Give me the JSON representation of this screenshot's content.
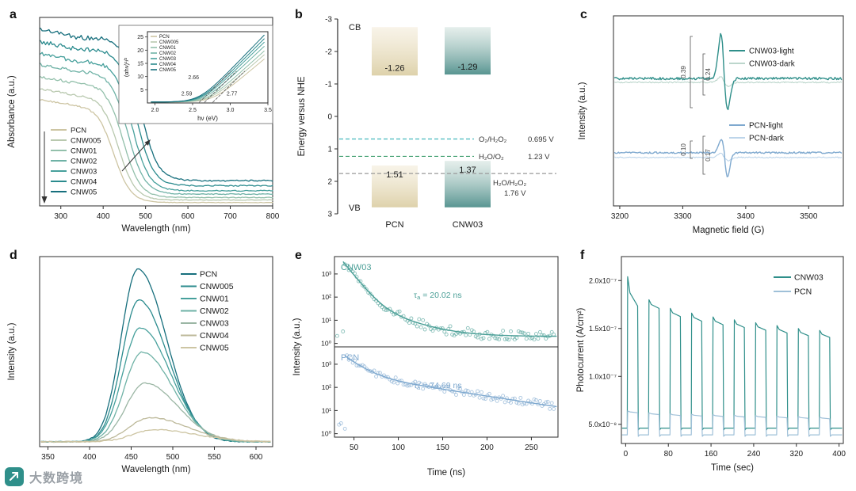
{
  "watermark": {
    "icon_name": "dashu-logo-icon",
    "icon_bg": "#2f8f8a",
    "text": "大数跨境",
    "text_color": "#9aa0a6"
  },
  "chart_data": [
    {
      "panel": "a",
      "label": "a",
      "type": "line",
      "xlabel": "Wavelength (nm)",
      "ylabel": "Absorbance (a.u.)",
      "x_range": [
        250,
        800
      ],
      "x_ticks": [
        300,
        400,
        500,
        600,
        700,
        800
      ],
      "series": [
        {
          "name": "PCN",
          "color": "#cdc5a3",
          "plateau": 0.6,
          "edge_nm": 425,
          "tail": 0.02
        },
        {
          "name": "CNW005",
          "color": "#b9c9af",
          "plateau": 0.66,
          "edge_nm": 436,
          "tail": 0.035
        },
        {
          "name": "CNW01",
          "color": "#93c0ab",
          "plateau": 0.73,
          "edge_nm": 447,
          "tail": 0.05
        },
        {
          "name": "CNW02",
          "color": "#6fb2a6",
          "plateau": 0.8,
          "edge_nm": 458,
          "tail": 0.07
        },
        {
          "name": "CNW03",
          "color": "#47a09c",
          "plateau": 0.86,
          "edge_nm": 468,
          "tail": 0.09
        },
        {
          "name": "CNW04",
          "color": "#2b8b8e",
          "plateau": 0.93,
          "edge_nm": 478,
          "tail": 0.12
        },
        {
          "name": "CNW05",
          "color": "#176f7d",
          "plateau": 1.0,
          "edge_nm": 488,
          "tail": 0.15
        }
      ],
      "inset": {
        "xlabel": "hν (eV)",
        "ylabel": "(αhν)¹/²",
        "x_range": [
          1.9,
          3.5
        ],
        "y_range": [
          0,
          27
        ],
        "x_ticks": [
          2.0,
          2.5,
          3.0,
          3.5
        ],
        "y_ticks": [
          5,
          10,
          15,
          20,
          25
        ],
        "series": [
          {
            "name": "PCN",
            "color": "#cdc5a3",
            "onset": 2.77,
            "slope": 26
          },
          {
            "name": "CNW005",
            "color": "#b9c9af",
            "onset": 2.73,
            "slope": 27
          },
          {
            "name": "CNW01",
            "color": "#93c0ab",
            "onset": 2.7,
            "slope": 28
          },
          {
            "name": "CNW02",
            "color": "#6fb2a6",
            "onset": 2.66,
            "slope": 29
          },
          {
            "name": "CNW03",
            "color": "#47a09c",
            "onset": 2.63,
            "slope": 30
          },
          {
            "name": "CNW04",
            "color": "#2b8b8e",
            "onset": 2.61,
            "slope": 31
          },
          {
            "name": "CNW05",
            "color": "#176f7d",
            "onset": 2.59,
            "slope": 32
          }
        ],
        "bandgaps": [
          {
            "text": "2.59",
            "value": 2.59
          },
          {
            "text": "2.66",
            "value": 2.66
          },
          {
            "text": "2.77",
            "value": 2.77
          }
        ]
      }
    },
    {
      "panel": "b",
      "label": "b",
      "type": "band-diagram",
      "ylabel": "Energy versus NHE",
      "y_range": [
        -3,
        3
      ],
      "y_ticks": [
        -3,
        -2,
        -1,
        0,
        1,
        2,
        3
      ],
      "cb_label": "CB",
      "vb_label": "VB",
      "samples": [
        {
          "name": "PCN",
          "cb_v": -1.26,
          "vb_v": 1.51,
          "cb_span": [
            -2.75,
            -1.26
          ],
          "vb_span": [
            1.51,
            2.8
          ],
          "color_top": "#f2ead6",
          "color_bottom": "#dccfa6"
        },
        {
          "name": "CNW03",
          "cb_v": -1.29,
          "vb_v": 1.37,
          "cb_span": [
            -2.75,
            -1.29
          ],
          "vb_span": [
            1.37,
            2.8
          ],
          "color_top": "#cfe0db",
          "color_bottom": "#4f8f8b"
        }
      ],
      "redox_lines": [
        {
          "label": "O₂/H₂O₂",
          "value_label": "0.695 V",
          "potential": 0.695,
          "color": "#43b7bd"
        },
        {
          "label": "H₂O/O₂",
          "value_label": "1.23 V",
          "potential": 1.23,
          "color": "#3f9e6e"
        },
        {
          "label": "H₂O/H₂O₂",
          "value_label": "1.76 V",
          "potential": 1.76,
          "color": "#9a9a9a"
        }
      ]
    },
    {
      "panel": "c",
      "label": "c",
      "type": "line",
      "xlabel": "Magnetic field (G)",
      "ylabel": "Intensity (a.u.)",
      "x_range": [
        3190,
        3555
      ],
      "x_ticks": [
        3200,
        3300,
        3400,
        3500
      ],
      "peak_center_G": 3366,
      "series": [
        {
          "name": "CNW03-light",
          "color": "#2f8f8a",
          "baseline": 0.33,
          "up": 56,
          "down": 38,
          "sigma": 5.5,
          "noise": 1.5
        },
        {
          "name": "CNW03-dark",
          "color": "#bcd6cc",
          "baseline": 0.35,
          "up": 7,
          "down": 5,
          "sigma": 6,
          "noise": 0.8
        },
        {
          "name": "PCN-light",
          "color": "#7fa9cf",
          "baseline": 0.72,
          "up": 17,
          "down": 30,
          "sigma": 5,
          "noise": 1.0
        },
        {
          "name": "PCN-dark",
          "color": "#bdd5ea",
          "baseline": 0.745,
          "up": 5,
          "down": 4,
          "sigma": 6,
          "noise": 0.7
        }
      ],
      "annotations": [
        "0.39",
        "0.24",
        "0.10",
        "0.17"
      ]
    },
    {
      "panel": "d",
      "label": "d",
      "type": "line",
      "xlabel": "Wavelength (nm)",
      "ylabel": "Intensity (a.u.)",
      "x_range": [
        340,
        620
      ],
      "x_ticks": [
        350,
        400,
        450,
        500,
        550,
        600
      ],
      "series": [
        {
          "name": "PCN",
          "color": "#176f7d",
          "center": 458,
          "height": 1.0,
          "width_left": 20,
          "width_right": 34
        },
        {
          "name": "CNW005",
          "color": "#2b8b8e",
          "center": 459,
          "height": 0.82,
          "width_left": 20,
          "width_right": 35
        },
        {
          "name": "CNW01",
          "color": "#47a09c",
          "center": 461,
          "height": 0.66,
          "width_left": 21,
          "width_right": 36
        },
        {
          "name": "CNW02",
          "color": "#6fb2a6",
          "center": 463,
          "height": 0.52,
          "width_left": 21,
          "width_right": 37
        },
        {
          "name": "CNW03",
          "color": "#9bb6a4",
          "center": 466,
          "height": 0.34,
          "width_left": 22,
          "width_right": 40
        },
        {
          "name": "CNW04",
          "color": "#bdb99a",
          "center": 472,
          "height": 0.14,
          "width_left": 24,
          "width_right": 46
        },
        {
          "name": "CNW05",
          "color": "#cdc5a3",
          "center": 478,
          "height": 0.07,
          "width_left": 26,
          "width_right": 50
        }
      ]
    },
    {
      "panel": "e",
      "label": "e",
      "type": "scatter",
      "xlabel": "Time (ns)",
      "ylabel": "Intensity (a.u.)",
      "x_range": [
        28,
        280
      ],
      "x_ticks": [
        50,
        100,
        150,
        200,
        250
      ],
      "y_ticks": [
        {
          "v": 1,
          "label": "10⁰"
        },
        {
          "v": 10,
          "label": "10¹"
        },
        {
          "v": 100,
          "label": "10²"
        },
        {
          "v": 1000,
          "label": "10³"
        }
      ],
      "subplots": [
        {
          "name": "CNW03",
          "color": "#4b9f97",
          "tau_label": "τa = 20.02 ns",
          "t0": 38,
          "components": [
            [
              3200,
              9
            ],
            [
              90,
              30
            ]
          ],
          "floor": 2.0
        },
        {
          "name": "PCN",
          "color": "#7fa9cf",
          "tau_label": "τa = 74.69 ns",
          "t0": 40,
          "components": [
            [
              1900,
              14
            ],
            [
              380,
              72
            ]
          ],
          "floor": 0.9
        }
      ]
    },
    {
      "panel": "f",
      "label": "f",
      "type": "line",
      "xlabel": "Time (sec)",
      "ylabel": "Photocurrent (A/cm²)",
      "x_range": [
        -8,
        408
      ],
      "x_ticks": [
        0,
        80,
        160,
        240,
        320,
        400
      ],
      "y_range": [
        3e-08,
        2.25e-07
      ],
      "y_ticks": [
        {
          "v": 5e-08,
          "label": "5.0x10⁻⁸"
        },
        {
          "v": 1e-07,
          "label": "1.0x10⁻⁷"
        },
        {
          "v": 1.5e-07,
          "label": "1.5x10⁻⁷"
        },
        {
          "v": 2e-07,
          "label": "2.0x10⁻⁷"
        }
      ],
      "cycle": {
        "start": 3,
        "on": 20,
        "off": 20
      },
      "series": [
        {
          "name": "CNW03",
          "color": "#2f8f8a",
          "off_value": 4.6e-08,
          "sag_first": 0.85,
          "sag": 0.95,
          "peaks": [
            2.04e-07,
            1.8e-07,
            1.71e-07,
            1.66e-07,
            1.62e-07,
            1.59e-07,
            1.56e-07,
            1.53e-07,
            1.5e-07,
            1.48e-07
          ]
        },
        {
          "name": "PCN",
          "color": "#9fc0d8",
          "off_value": 3.9e-08,
          "sag_first": 0.97,
          "sag": 0.97,
          "peaks": [
            6.4e-08,
            6.2e-08,
            6.1e-08,
            6.05e-08,
            6e-08,
            5.95e-08,
            5.9e-08,
            5.85e-08,
            5.8e-08,
            5.75e-08
          ]
        }
      ]
    }
  ]
}
